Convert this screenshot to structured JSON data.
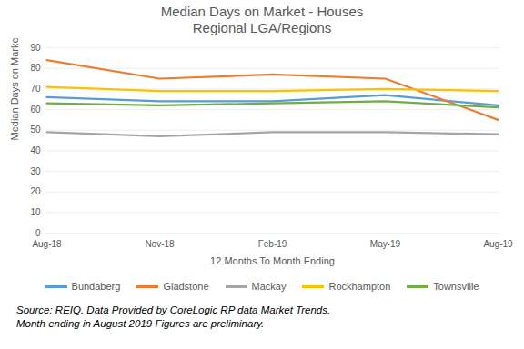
{
  "chart_data": {
    "type": "line",
    "title": "Median Days on Market - Houses",
    "subtitle": "Regional LGA/Regions",
    "x_label": "12 Months To Month Ending",
    "y_label": "Median Days on Market",
    "categories": [
      "Aug-18",
      "Nov-18",
      "Feb-19",
      "May-19",
      "Aug-19"
    ],
    "series": [
      {
        "name": "Bundaberg",
        "color": "#5b9bd5",
        "values": [
          66,
          64,
          64,
          67,
          62
        ]
      },
      {
        "name": "Gladstone",
        "color": "#ed7d31",
        "values": [
          84,
          75,
          77,
          75,
          55
        ]
      },
      {
        "name": "Mackay",
        "color": "#a5a5a5",
        "values": [
          49,
          47,
          49,
          49,
          48
        ]
      },
      {
        "name": "Rockhampton",
        "color": "#ffc000",
        "values": [
          71,
          69,
          69,
          70,
          69
        ]
      },
      {
        "name": "Townsville",
        "color": "#70ad47",
        "values": [
          63,
          62,
          63,
          64,
          61
        ]
      }
    ],
    "ylim": [
      0,
      90
    ],
    "yticks": [
      0,
      10,
      20,
      30,
      40,
      50,
      60,
      70,
      80,
      90
    ],
    "grid": true,
    "legend": "bottom",
    "annotations": [
      "Source: REIQ. Data Provided by CoreLogic RP data Market Trends.",
      "Month ending in August 2019 Figures are preliminary."
    ]
  }
}
